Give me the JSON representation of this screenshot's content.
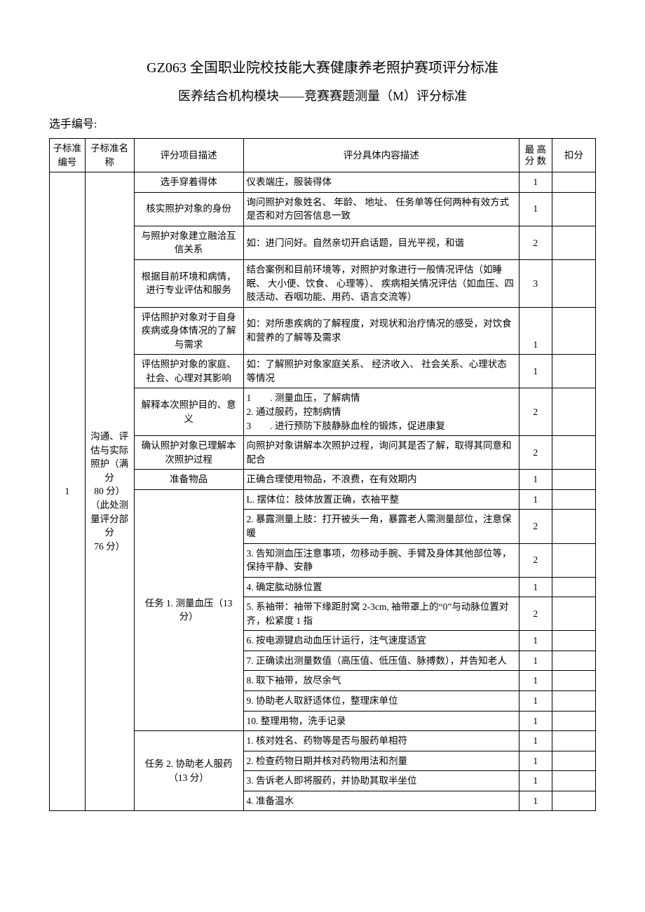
{
  "titles": {
    "main": "GZ063 全国职业院校技能大赛健康养老照护赛项评分标准",
    "sub": "医养结合机构模块——竞赛赛题测量（M）评分标准",
    "contestant_label": "选手编号:"
  },
  "headers": {
    "sub_id": "子标准编号",
    "sub_name": "子标准名称",
    "item_desc": "评分项目描述",
    "detail": "评分具体内容描述",
    "max_label_line1": "最 高",
    "max_label_line2": "分 数",
    "deduct": "扣分"
  },
  "group": {
    "id": "1",
    "name": "沟通、评估与实际照护（满分\n80 分）\n（此处测量评分部分\n76 分）"
  },
  "rows": [
    {
      "item": "选手穿着得体",
      "detail": "仪表端庄，服装得体",
      "max": "1"
    },
    {
      "item": "核实照护对象的身份",
      "detail": "询问照护对象姓名、 年龄、 地址、 任务单等任何两种有效方式是否和对方回答信息一致",
      "max": "1"
    },
    {
      "item": "与照护对象建立融洽互信关系",
      "detail": "如：进门问好。自然亲切开启话题，目光平视，和谐",
      "max": "2"
    },
    {
      "item": "根据目前环境和病情，进行专业评估和服务",
      "detail": "结合案例和目前环境等，对照护对象进行一般情况评估（如睡眠、 大小便、饮食、 心理等）、 疾病相关情况评估（如血压、四肢活动、吞咽功能、用药、语言交流等）",
      "max": "3"
    },
    {
      "item": "评估照护对象对于自身疾病或身体情况的了解与需求",
      "detail": "如：对所患疾病的了解程度，对现状和治疗情况的感受，对饮食和营养的了解等及需求",
      "max": "1"
    },
    {
      "item": "评估照护对象的家庭、社会、心理对其影响",
      "detail": "如：了解照护对象家庭关系、 经济收入、 社会关系、心理状态等情况",
      "max": "1"
    },
    {
      "item": "解释本次照护目的、意义",
      "detail": "1　　. 测量血压，了解病情\n2. 通过服药，控制病情\n3　　. 进行预防下肢静脉血栓的锻炼，促进康复",
      "max": "2"
    },
    {
      "item": "确认照护对象已理解本次照护过程",
      "detail": "向照护对象讲解本次照护过程，询问其是否了解，取得其同意和配合",
      "max": "2"
    },
    {
      "item": "准备物品",
      "detail": "正确合理使用物品，不浪费，在有效期内",
      "max": "1"
    }
  ],
  "task1": {
    "item": "任务 1. 测量血压（13 分）",
    "lines": [
      {
        "detail": "L. 摆体位：肢体放置正确，衣袖平整",
        "max": "1"
      },
      {
        "detail": "2. 暴露测量上肢：打开被头一角，暴露老人需测量部位，注意保暖",
        "max": "2"
      },
      {
        "detail": "3. 告知测血压注意事项，勿移动手腕、手臂及身体其他部位等，保持平静、安静",
        "max": "2"
      },
      {
        "detail": "4. 确定肱动脉位置",
        "max": "1"
      },
      {
        "detail": "5. 系袖带：袖带下缘距肘窝 2-3cm, 袖带罩上的“0”与动脉位置对齐，松紧度 1 指",
        "max": "2"
      },
      {
        "detail": "6. 按电源键启动血压计运行，注气速度适宜",
        "max": "1"
      },
      {
        "detail": "7. 正确读出测量数值（高压值、低压值、脉搏数），并告知老人",
        "max": "1"
      },
      {
        "detail": "8. 取下袖带，放尽余气",
        "max": "1"
      },
      {
        "detail": "9. 协助老人取舒适体位，整理床单位",
        "max": "1"
      },
      {
        "detail": "10. 整理用物，洗手记录",
        "max": "1"
      }
    ]
  },
  "task2": {
    "item": "任务 2. 协助老人服药（13 分）",
    "lines": [
      {
        "detail": "1. 核对姓名、药物等是否与服药单相符",
        "max": "1"
      },
      {
        "detail": "2. 检查药物日期并核对药物用法和剂量",
        "max": "1"
      },
      {
        "detail": "3. 告诉老人即将服药，并协助其取半坐位",
        "max": "1"
      },
      {
        "detail": "4. 准备温水",
        "max": "1"
      }
    ]
  }
}
